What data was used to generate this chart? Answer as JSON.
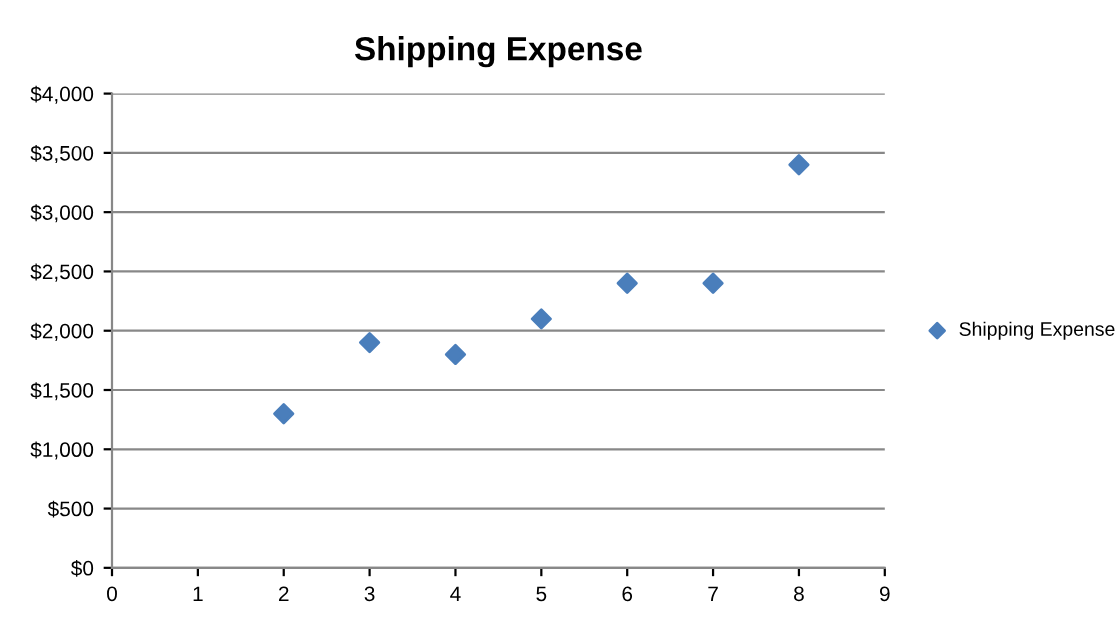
{
  "chart_data": {
    "type": "scatter",
    "title": "Shipping Expense",
    "x": [
      2,
      3,
      4,
      5,
      6,
      7,
      8
    ],
    "series": [
      {
        "name": "Shipping Expense",
        "color": "#4a7ebb",
        "values": [
          1300,
          1900,
          1800,
          2100,
          2400,
          2400,
          3400
        ]
      }
    ],
    "xlim": [
      0,
      9
    ],
    "xticks": [
      0,
      1,
      2,
      3,
      4,
      5,
      6,
      7,
      8,
      9
    ],
    "ylim": [
      0,
      4000
    ],
    "yticks": [
      {
        "value": 0,
        "label": "$0"
      },
      {
        "value": 500,
        "label": "$500"
      },
      {
        "value": 1000,
        "label": "$1,000"
      },
      {
        "value": 1500,
        "label": "$1,500"
      },
      {
        "value": 2000,
        "label": "$2,000"
      },
      {
        "value": 2500,
        "label": "$2,500"
      },
      {
        "value": 3000,
        "label": "$3,000"
      },
      {
        "value": 3500,
        "label": "$3,500"
      },
      {
        "value": 4000,
        "label": "$4,000"
      }
    ],
    "grid": "y",
    "legend": "right",
    "marker": "diamond"
  }
}
